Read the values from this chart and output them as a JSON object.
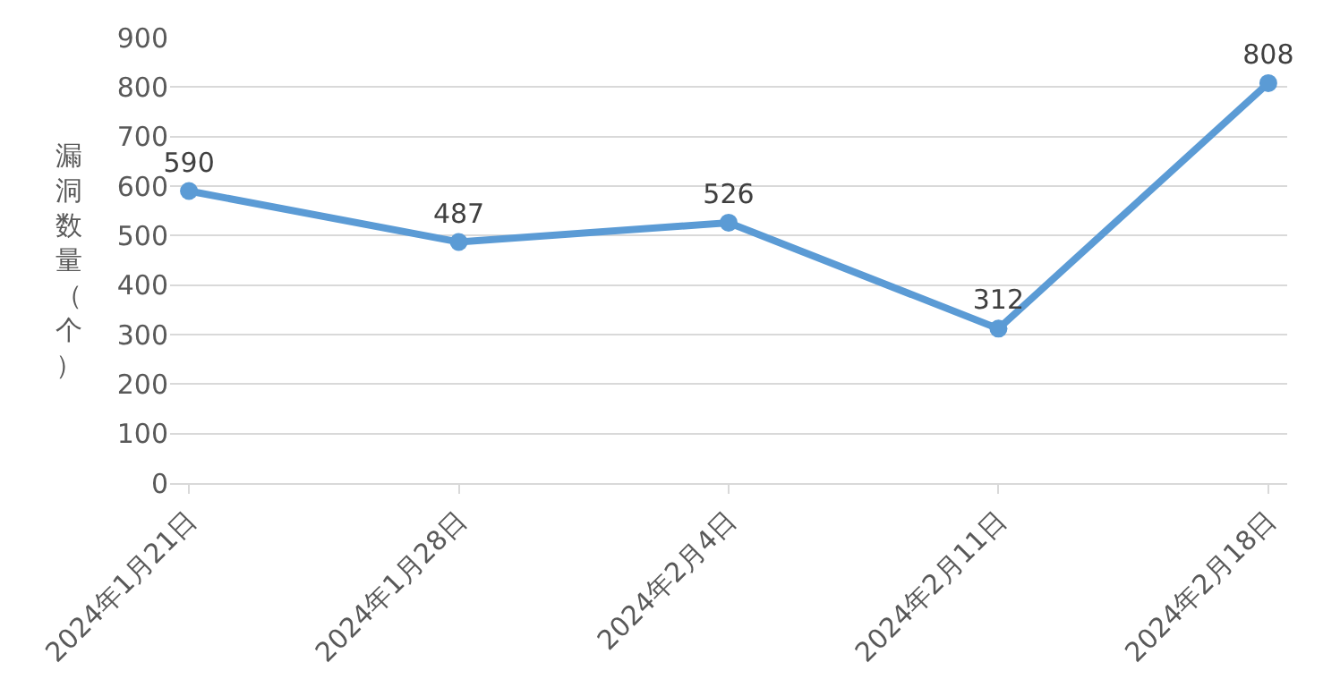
{
  "chart_data": {
    "type": "line",
    "ylabel": "漏洞数量（个）",
    "categories": [
      "2024年1月21日",
      "2024年1月28日",
      "2024年2月4日",
      "2024年2月11日",
      "2024年2月18日"
    ],
    "series": [
      {
        "color": "#5b9bd5",
        "values": [
          590,
          487,
          526,
          312,
          808
        ]
      }
    ],
    "ylim": [
      0,
      900
    ],
    "yticks": [
      0,
      100,
      200,
      300,
      400,
      500,
      600,
      700,
      800,
      900
    ],
    "grid": "y",
    "data_labels": true,
    "marker": "circle",
    "line_style": "solid",
    "legend": false
  }
}
